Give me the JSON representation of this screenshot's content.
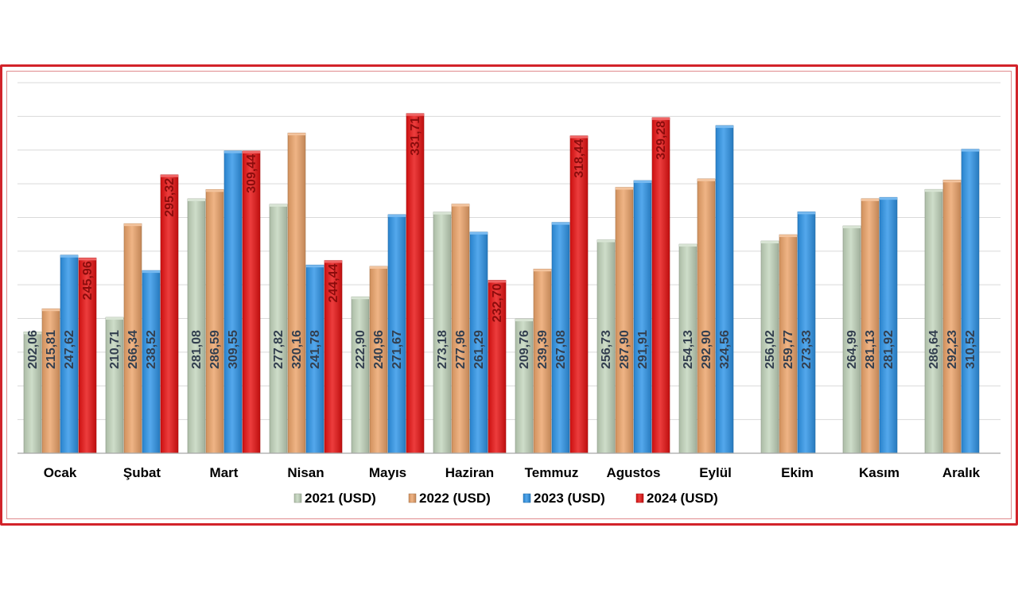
{
  "chart_data": {
    "type": "bar",
    "title": "",
    "xlabel": "",
    "ylabel": "",
    "ylim": [
      130,
      350
    ],
    "grid": true,
    "legend_position": "bottom",
    "categories": [
      "Ocak",
      "Şubat",
      "Mart",
      "Nisan",
      "Mayıs",
      "Haziran",
      "Temmuz",
      "Agustos",
      "Eylül",
      "Ekim",
      "Kasım",
      "Aralık"
    ],
    "series": [
      {
        "name": "2021 (USD)",
        "color": "#c3d6bd",
        "values": [
          202.06,
          210.71,
          281.08,
          277.82,
          222.9,
          273.18,
          209.76,
          256.73,
          254.13,
          256.02,
          264.99,
          286.64
        ],
        "labels": [
          "202,06",
          "210,71",
          "281,08",
          "277,82",
          "222,90",
          "273,18",
          "209,76",
          "256,73",
          "254,13",
          "256,02",
          "264,99",
          "286,64"
        ]
      },
      {
        "name": "2022 (USD)",
        "color": "#eca46a",
        "values": [
          215.81,
          266.34,
          286.59,
          320.16,
          240.96,
          277.96,
          239.39,
          287.9,
          292.9,
          259.77,
          281.13,
          292.23
        ],
        "labels": [
          "215,81",
          "266,34",
          "286,59",
          "320,16",
          "240,96",
          "277,96",
          "239,39",
          "287,90",
          "292,90",
          "259,77",
          "281,13",
          "292,23"
        ]
      },
      {
        "name": "2023 (USD)",
        "color": "#2f95e8",
        "values": [
          247.62,
          238.52,
          309.55,
          241.78,
          271.67,
          261.29,
          267.08,
          291.91,
          324.56,
          273.33,
          281.92,
          310.52
        ],
        "labels": [
          "247,62",
          "238,52",
          "309,55",
          "241,78",
          "271,67",
          "261,29",
          "267,08",
          "291,91",
          "324,56",
          "273,33",
          "281,92",
          "310,52"
        ]
      },
      {
        "name": "2024 (USD)",
        "color": "#e81212",
        "values": [
          245.96,
          295.32,
          309.44,
          244.44,
          331.71,
          232.7,
          318.44,
          329.28,
          null,
          null,
          null,
          null
        ],
        "labels": [
          "245,96",
          "295,32",
          "309,44",
          "244,44",
          "331,71",
          "232,70",
          "318,44",
          "329,28",
          null,
          null,
          null,
          null
        ]
      }
    ]
  }
}
